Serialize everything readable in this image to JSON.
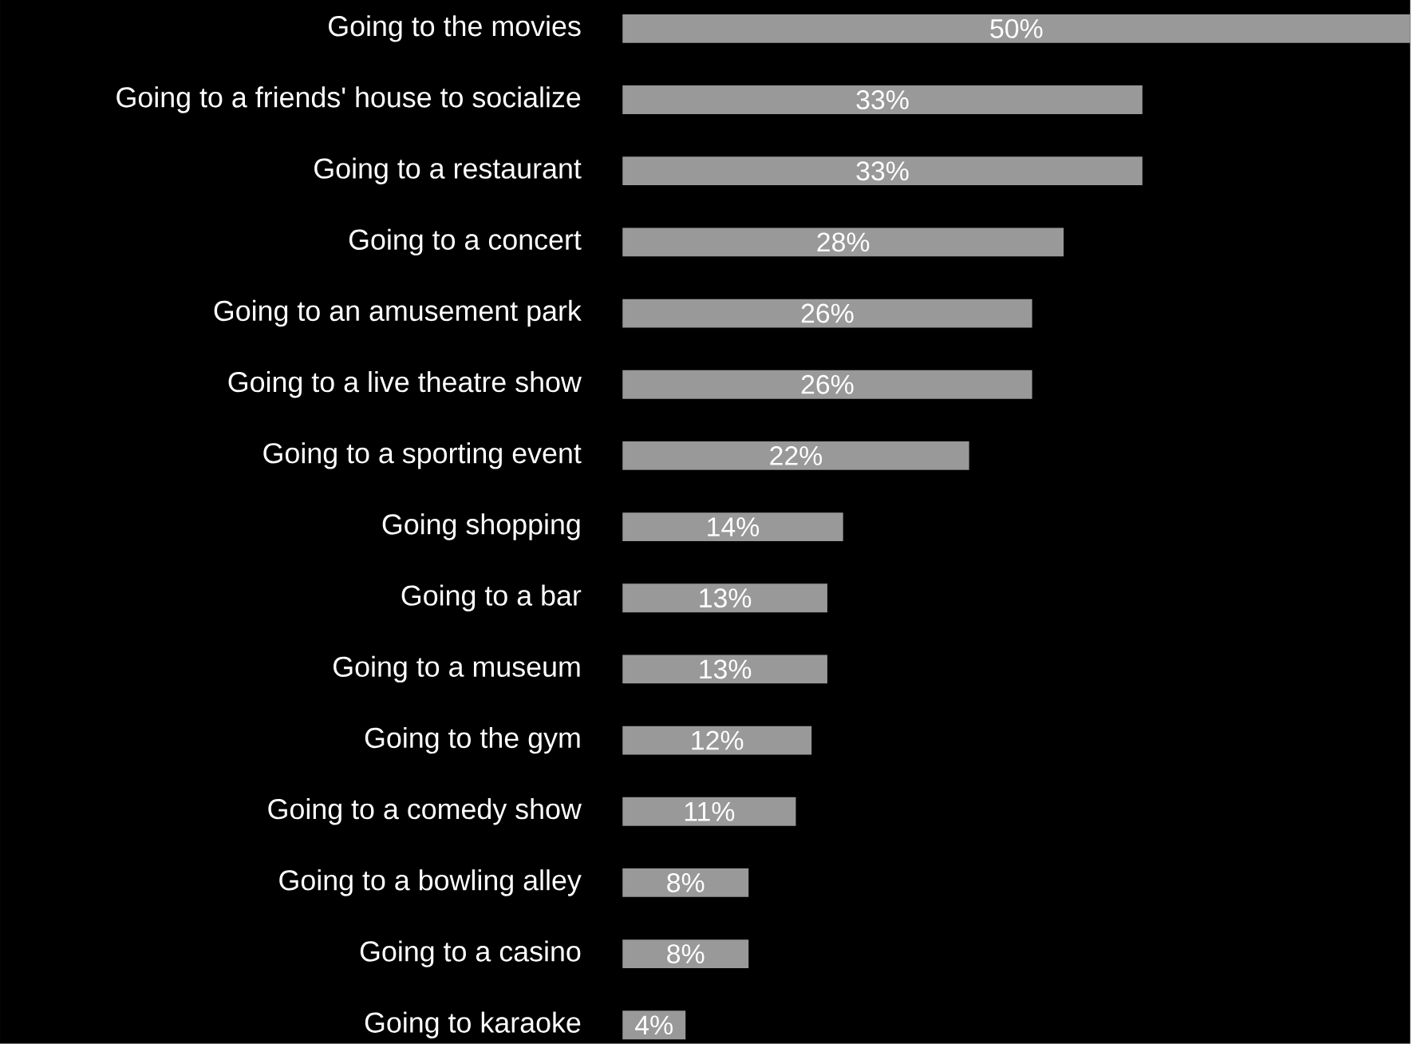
{
  "chart_data": {
    "type": "bar",
    "orientation": "horizontal",
    "categories": [
      "Going to the movies",
      "Going to a friends' house to socialize",
      "Going to a restaurant",
      "Going to a concert",
      "Going to an amusement park",
      "Going to a live theatre show",
      "Going to a sporting event",
      "Going shopping",
      "Going to a bar",
      "Going to a museum",
      "Going to the gym",
      "Going to a comedy show",
      "Going to a bowling alley",
      "Going to a casino",
      "Going to karaoke"
    ],
    "values": [
      50,
      33,
      33,
      28,
      26,
      26,
      22,
      14,
      13,
      13,
      12,
      11,
      8,
      8,
      4
    ],
    "value_labels": [
      "50%",
      "33%",
      "33%",
      "28%",
      "26%",
      "26%",
      "22%",
      "14%",
      "13%",
      "13%",
      "12%",
      "11%",
      "8%",
      "8%",
      "4%"
    ],
    "color": "#999999",
    "xlim": [
      0,
      50
    ]
  }
}
